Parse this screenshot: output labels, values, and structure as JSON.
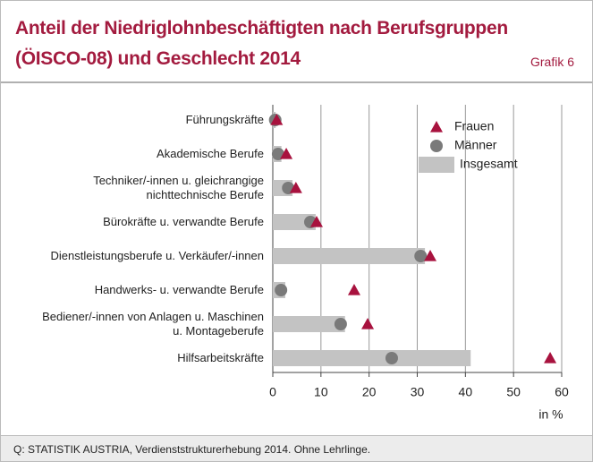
{
  "chart_data": {
    "type": "bar",
    "title": "Anteil der Niedriglohnbeschäftigten nach Berufsgruppen\n(ÖISCO-08) und Geschlecht 2014",
    "figure_label": "Grafik 6",
    "source": "Q: STATISTIK AUSTRIA, Verdienststrukturerhebung 2014. Ohne Lehrlinge.",
    "x_label": "in %",
    "categories": [
      "Führungskräfte",
      "Akademische Berufe",
      "Techniker/-innen u. gleichrangige\nnichttechnische Berufe",
      "Bürokräfte u. verwandte Berufe",
      "Dienstleistungsberufe u. Verkäufer/-innen",
      "Handwerks- u. verwandte Berufe",
      "Bediener/-innen von Anlagen u. Maschinen\nu. Montageberufe",
      "Hilfsarbeitskräfte"
    ],
    "series": [
      {
        "name": "Frauen",
        "marker": "triangle",
        "color": "#a8123e",
        "values": [
          0.8,
          2.8,
          4.8,
          9.1,
          32.7,
          16.9,
          19.7,
          57.6
        ]
      },
      {
        "name": "Männer",
        "marker": "circle",
        "color": "#7a7a7a",
        "values": [
          0.5,
          1.1,
          3.2,
          7.8,
          30.7,
          1.7,
          14.1,
          24.7
        ]
      },
      {
        "name": "Insgesamt",
        "marker": "bar",
        "color": "#c3c3c3",
        "values": [
          0.6,
          1.8,
          4.1,
          8.9,
          31.6,
          2.6,
          15.0,
          41.1
        ]
      }
    ],
    "xlim": [
      0,
      60
    ],
    "xticks": [
      0,
      10,
      20,
      30,
      40,
      50,
      60
    ],
    "grid": true,
    "legend": "top-right"
  }
}
